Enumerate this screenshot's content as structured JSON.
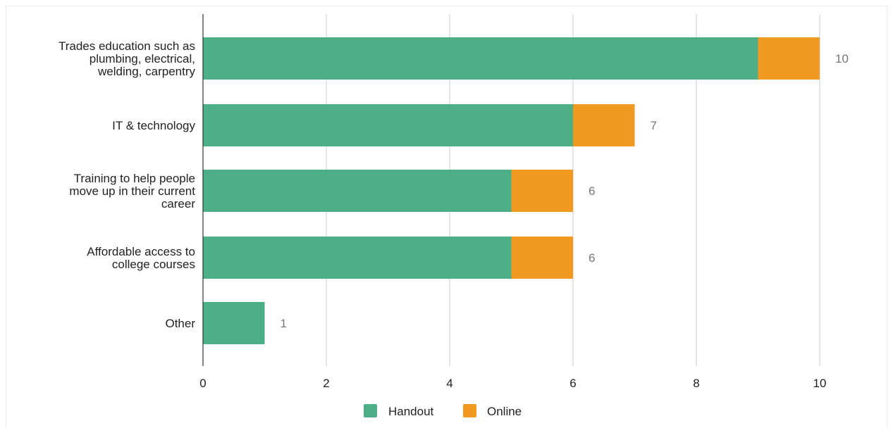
{
  "chart_data": {
    "type": "bar",
    "orientation": "horizontal",
    "stacked": true,
    "title": "",
    "xlabel": "",
    "ylabel": "",
    "categories": [
      [
        "Trades education such as",
        "plumbing, electrical,",
        "welding, carpentry"
      ],
      [
        "IT & technology"
      ],
      [
        "Training to help people",
        "move up in their current",
        "career"
      ],
      [
        "Affordable access to",
        "college courses"
      ],
      [
        "Other"
      ]
    ],
    "series": [
      {
        "name": "Handout",
        "color": "#4caf85",
        "values": [
          9,
          6,
          5,
          5,
          1
        ]
      },
      {
        "name": "Online",
        "color": "#f09a22",
        "values": [
          1,
          1,
          1,
          1,
          0
        ]
      }
    ],
    "totals": [
      "10",
      "7",
      "6",
      "6",
      "1"
    ],
    "xlim": [
      0,
      10
    ],
    "xticks": [
      "0",
      "2",
      "4",
      "6",
      "8",
      "10"
    ],
    "xtick_values": [
      0,
      2,
      4,
      6,
      8,
      10
    ],
    "grid": true,
    "legend_position": "bottom"
  }
}
